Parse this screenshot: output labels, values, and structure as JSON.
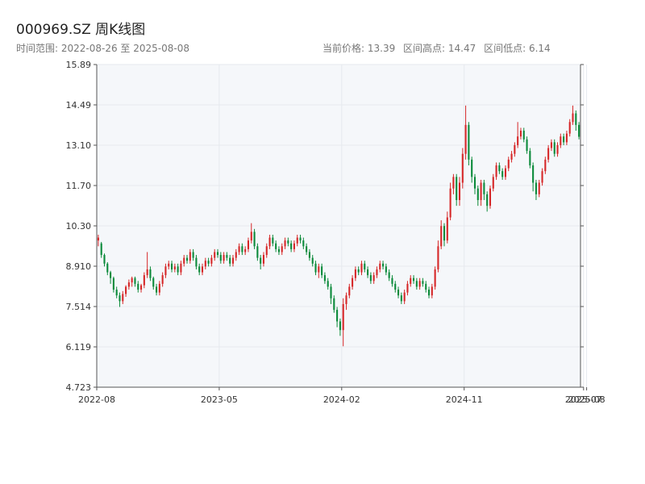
{
  "header": {
    "title": "000969.SZ 周K线图",
    "range_text": "时间范围: 2022-08-26 至 2025-08-08",
    "current_price": "当前价格: 13.39",
    "range_high": "区间高点: 14.47",
    "range_low": "区间低点: 6.14"
  },
  "colors": {
    "up": "#d62728",
    "down": "#0b8a3a",
    "plot_bg": "#f5f7fa",
    "grid": "#e6e9ee",
    "axis": "#555555"
  },
  "chart_data": {
    "type": "candlestick",
    "title": "000969.SZ 周K线图",
    "xlabel": "",
    "ylabel": "",
    "ylim": [
      4.723,
      15.89
    ],
    "y_ticks": [
      "4.723",
      "6.119",
      "7.514",
      "8.910",
      "10.30",
      "11.70",
      "13.10",
      "14.49",
      "15.89"
    ],
    "x_tick_labels": [
      "2022-08",
      "2023-05",
      "2024-02",
      "2024-11",
      "2025-07",
      "2025-08"
    ],
    "x_tick_index": [
      0,
      40,
      80,
      120,
      159,
      160
    ],
    "grid": true,
    "candles": [
      [
        9.8,
        9.9,
        10.0,
        9.6
      ],
      [
        9.7,
        9.3,
        9.75,
        9.2
      ],
      [
        9.3,
        9.0,
        9.35,
        8.9
      ],
      [
        9.0,
        8.7,
        9.05,
        8.6
      ],
      [
        8.7,
        8.5,
        8.75,
        8.3
      ],
      [
        8.5,
        8.1,
        8.55,
        8.0
      ],
      [
        8.1,
        7.9,
        8.2,
        7.8
      ],
      [
        7.9,
        7.7,
        8.0,
        7.5
      ],
      [
        7.7,
        7.95,
        8.05,
        7.6
      ],
      [
        7.95,
        8.2,
        8.25,
        7.85
      ],
      [
        8.2,
        8.35,
        8.45,
        8.1
      ],
      [
        8.35,
        8.5,
        8.55,
        8.2
      ],
      [
        8.5,
        8.3,
        8.55,
        8.2
      ],
      [
        8.3,
        8.1,
        8.4,
        8.0
      ],
      [
        8.1,
        8.25,
        8.3,
        8.0
      ],
      [
        8.25,
        8.6,
        8.7,
        8.15
      ],
      [
        8.6,
        8.8,
        9.4,
        8.5
      ],
      [
        8.8,
        8.5,
        8.9,
        8.4
      ],
      [
        8.5,
        8.2,
        8.55,
        8.1
      ],
      [
        8.2,
        8.0,
        8.3,
        7.9
      ],
      [
        8.0,
        8.3,
        8.4,
        7.9
      ],
      [
        8.3,
        8.6,
        8.7,
        8.2
      ],
      [
        8.6,
        8.9,
        9.0,
        8.5
      ],
      [
        8.9,
        9.0,
        9.1,
        8.8
      ],
      [
        9.0,
        8.8,
        9.1,
        8.7
      ],
      [
        8.8,
        8.9,
        9.0,
        8.7
      ],
      [
        8.9,
        8.7,
        9.0,
        8.6
      ],
      [
        8.7,
        9.0,
        9.1,
        8.6
      ],
      [
        9.0,
        9.2,
        9.3,
        8.9
      ],
      [
        9.2,
        9.1,
        9.3,
        9.0
      ],
      [
        9.1,
        9.4,
        9.5,
        9.0
      ],
      [
        9.4,
        9.2,
        9.5,
        9.1
      ],
      [
        9.2,
        8.9,
        9.3,
        8.8
      ],
      [
        8.9,
        8.7,
        9.0,
        8.6
      ],
      [
        8.7,
        8.9,
        9.0,
        8.6
      ],
      [
        8.9,
        9.1,
        9.2,
        8.8
      ],
      [
        9.1,
        9.0,
        9.2,
        8.9
      ],
      [
        9.0,
        9.2,
        9.3,
        8.9
      ],
      [
        9.2,
        9.4,
        9.5,
        9.1
      ],
      [
        9.4,
        9.3,
        9.5,
        9.2
      ],
      [
        9.3,
        9.1,
        9.4,
        9.0
      ],
      [
        9.1,
        9.3,
        9.4,
        9.0
      ],
      [
        9.3,
        9.2,
        9.4,
        9.1
      ],
      [
        9.2,
        9.0,
        9.3,
        8.9
      ],
      [
        9.0,
        9.2,
        9.3,
        8.9
      ],
      [
        9.2,
        9.4,
        9.5,
        9.1
      ],
      [
        9.4,
        9.6,
        9.7,
        9.3
      ],
      [
        9.6,
        9.4,
        9.7,
        9.3
      ],
      [
        9.4,
        9.5,
        9.6,
        9.3
      ],
      [
        9.5,
        9.8,
        9.9,
        9.4
      ],
      [
        9.8,
        10.1,
        10.4,
        9.7
      ],
      [
        10.1,
        9.6,
        10.2,
        9.5
      ],
      [
        9.6,
        9.2,
        9.7,
        9.1
      ],
      [
        9.2,
        9.0,
        9.3,
        8.8
      ],
      [
        9.0,
        9.3,
        9.4,
        8.9
      ],
      [
        9.3,
        9.6,
        9.7,
        9.2
      ],
      [
        9.6,
        9.9,
        10.0,
        9.5
      ],
      [
        9.9,
        9.7,
        10.0,
        9.6
      ],
      [
        9.7,
        9.5,
        9.8,
        9.4
      ],
      [
        9.5,
        9.4,
        9.6,
        9.3
      ],
      [
        9.4,
        9.6,
        9.7,
        9.3
      ],
      [
        9.6,
        9.8,
        9.9,
        9.5
      ],
      [
        9.8,
        9.7,
        9.9,
        9.6
      ],
      [
        9.7,
        9.5,
        9.8,
        9.4
      ],
      [
        9.5,
        9.7,
        9.8,
        9.4
      ],
      [
        9.7,
        9.9,
        10.0,
        9.6
      ],
      [
        9.9,
        9.8,
        10.0,
        9.7
      ],
      [
        9.8,
        9.6,
        9.9,
        9.5
      ],
      [
        9.6,
        9.4,
        9.7,
        9.3
      ],
      [
        9.4,
        9.2,
        9.5,
        9.1
      ],
      [
        9.2,
        9.0,
        9.3,
        8.9
      ],
      [
        9.0,
        8.7,
        9.1,
        8.6
      ],
      [
        8.7,
        8.9,
        9.0,
        8.5
      ],
      [
        8.9,
        8.6,
        9.0,
        8.5
      ],
      [
        8.6,
        8.4,
        8.7,
        8.3
      ],
      [
        8.4,
        8.2,
        8.5,
        8.1
      ],
      [
        8.2,
        7.8,
        8.3,
        7.6
      ],
      [
        7.8,
        7.4,
        7.9,
        7.3
      ],
      [
        7.4,
        7.0,
        7.5,
        6.8
      ],
      [
        7.0,
        6.7,
        7.1,
        6.5
      ],
      [
        6.7,
        7.6,
        7.8,
        6.14
      ],
      [
        7.6,
        7.9,
        8.0,
        7.4
      ],
      [
        7.9,
        8.2,
        8.3,
        7.8
      ],
      [
        8.2,
        8.5,
        8.6,
        8.1
      ],
      [
        8.5,
        8.8,
        8.9,
        8.4
      ],
      [
        8.8,
        8.7,
        8.9,
        8.6
      ],
      [
        8.7,
        9.0,
        9.1,
        8.6
      ],
      [
        9.0,
        8.8,
        9.1,
        8.7
      ],
      [
        8.8,
        8.6,
        8.9,
        8.5
      ],
      [
        8.6,
        8.4,
        8.7,
        8.3
      ],
      [
        8.4,
        8.6,
        8.7,
        8.3
      ],
      [
        8.6,
        8.8,
        8.9,
        8.5
      ],
      [
        8.8,
        9.0,
        9.1,
        8.7
      ],
      [
        9.0,
        8.9,
        9.1,
        8.8
      ],
      [
        8.9,
        8.7,
        9.0,
        8.6
      ],
      [
        8.7,
        8.5,
        8.8,
        8.4
      ],
      [
        8.5,
        8.3,
        8.6,
        8.2
      ],
      [
        8.3,
        8.1,
        8.4,
        8.0
      ],
      [
        8.1,
        7.9,
        8.2,
        7.8
      ],
      [
        7.9,
        7.7,
        8.0,
        7.6
      ],
      [
        7.7,
        8.0,
        8.1,
        7.6
      ],
      [
        8.0,
        8.3,
        8.4,
        7.9
      ],
      [
        8.3,
        8.5,
        8.6,
        8.2
      ],
      [
        8.5,
        8.4,
        8.6,
        8.3
      ],
      [
        8.4,
        8.2,
        8.5,
        8.1
      ],
      [
        8.2,
        8.4,
        8.5,
        8.1
      ],
      [
        8.4,
        8.3,
        8.5,
        8.2
      ],
      [
        8.3,
        8.1,
        8.4,
        8.0
      ],
      [
        8.1,
        7.9,
        8.2,
        7.8
      ],
      [
        7.9,
        8.2,
        8.3,
        7.8
      ],
      [
        8.2,
        8.8,
        8.9,
        8.1
      ],
      [
        8.8,
        9.6,
        9.8,
        8.7
      ],
      [
        9.6,
        10.3,
        10.5,
        9.5
      ],
      [
        10.3,
        9.8,
        10.4,
        9.6
      ],
      [
        9.8,
        10.6,
        10.8,
        9.7
      ],
      [
        10.6,
        11.6,
        11.8,
        10.5
      ],
      [
        11.6,
        12.0,
        12.1,
        11.4
      ],
      [
        12.0,
        11.2,
        12.1,
        11.0
      ],
      [
        11.2,
        11.8,
        12.0,
        11.0
      ],
      [
        11.8,
        12.8,
        13.0,
        11.6
      ],
      [
        12.8,
        13.8,
        14.47,
        12.6
      ],
      [
        13.8,
        12.6,
        13.9,
        12.4
      ],
      [
        12.6,
        12.0,
        12.7,
        11.8
      ],
      [
        12.0,
        11.6,
        12.1,
        11.4
      ],
      [
        11.6,
        11.2,
        11.7,
        11.0
      ],
      [
        11.2,
        11.8,
        11.9,
        11.0
      ],
      [
        11.8,
        11.4,
        11.9,
        11.2
      ],
      [
        11.4,
        11.0,
        11.5,
        10.8
      ],
      [
        11.0,
        11.6,
        11.7,
        10.9
      ],
      [
        11.6,
        12.0,
        12.1,
        11.5
      ],
      [
        12.0,
        12.4,
        12.5,
        11.9
      ],
      [
        12.4,
        12.2,
        12.5,
        12.1
      ],
      [
        12.2,
        12.0,
        12.3,
        11.9
      ],
      [
        12.0,
        12.3,
        12.4,
        11.9
      ],
      [
        12.3,
        12.6,
        12.7,
        12.2
      ],
      [
        12.6,
        12.8,
        12.9,
        12.5
      ],
      [
        12.8,
        13.1,
        13.2,
        12.7
      ],
      [
        13.1,
        13.4,
        13.9,
        13.0
      ],
      [
        13.4,
        13.6,
        13.7,
        13.3
      ],
      [
        13.6,
        13.3,
        13.7,
        13.2
      ],
      [
        13.3,
        12.9,
        13.4,
        12.8
      ],
      [
        12.9,
        12.4,
        13.0,
        12.3
      ],
      [
        12.4,
        11.8,
        12.5,
        11.5
      ],
      [
        11.8,
        11.4,
        11.9,
        11.2
      ],
      [
        11.4,
        11.8,
        11.9,
        11.3
      ],
      [
        11.8,
        12.2,
        12.3,
        11.7
      ],
      [
        12.2,
        12.6,
        12.7,
        12.1
      ],
      [
        12.6,
        13.0,
        13.1,
        12.5
      ],
      [
        13.0,
        13.2,
        13.3,
        12.9
      ],
      [
        13.2,
        12.8,
        13.3,
        12.7
      ],
      [
        12.8,
        13.1,
        13.2,
        12.7
      ],
      [
        13.1,
        13.4,
        13.5,
        13.0
      ],
      [
        13.4,
        13.2,
        13.5,
        13.1
      ],
      [
        13.2,
        13.5,
        13.6,
        13.1
      ],
      [
        13.5,
        13.9,
        14.0,
        13.4
      ],
      [
        13.9,
        14.2,
        14.47,
        13.8
      ],
      [
        14.2,
        13.8,
        14.3,
        13.6
      ],
      [
        13.8,
        13.39,
        13.9,
        13.3
      ]
    ]
  }
}
